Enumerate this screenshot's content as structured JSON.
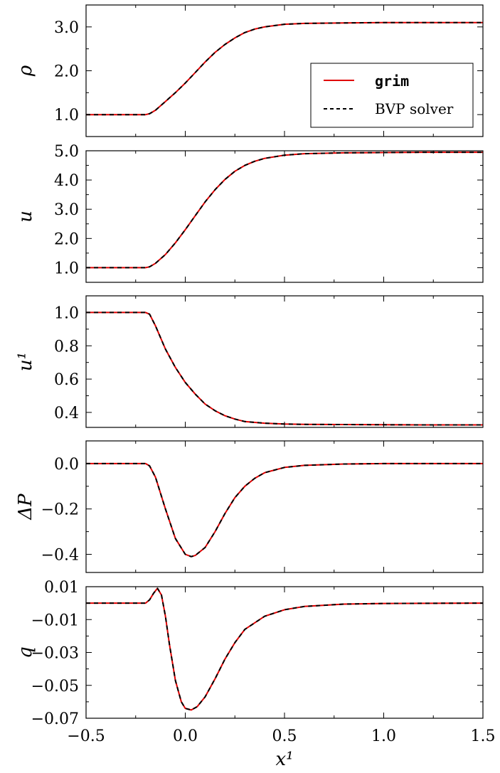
{
  "colors": {
    "grim": "#e00000",
    "bvp": "#000000"
  },
  "legend": {
    "entries": [
      {
        "label": "grim",
        "style": "solid",
        "color": "#e00000"
      },
      {
        "label": "BVP solver",
        "style": "dashed",
        "color": "#000000"
      }
    ],
    "placement": "lower-right of first panel"
  },
  "chart_data": [
    {
      "type": "line",
      "ylabel": "ρ",
      "ylim": [
        0.5,
        3.5
      ],
      "yticks": [
        1.0,
        2.0,
        3.0
      ],
      "ytick_labels": [
        "1.0",
        "2.0",
        "3.0"
      ],
      "xlim": [
        -0.5,
        1.5
      ],
      "x": [
        -0.5,
        -0.3,
        -0.2,
        -0.18,
        -0.15,
        -0.1,
        -0.05,
        0.0,
        0.05,
        0.1,
        0.15,
        0.2,
        0.25,
        0.3,
        0.35,
        0.4,
        0.5,
        0.6,
        0.8,
        1.0,
        1.2,
        1.5
      ],
      "series": [
        {
          "name": "grim",
          "values": [
            1.0,
            1.0,
            1.0,
            1.02,
            1.1,
            1.3,
            1.5,
            1.72,
            1.96,
            2.2,
            2.42,
            2.6,
            2.75,
            2.87,
            2.95,
            3.0,
            3.06,
            3.08,
            3.09,
            3.1,
            3.1,
            3.1
          ]
        },
        {
          "name": "BVP solver",
          "values": [
            1.0,
            1.0,
            1.0,
            1.02,
            1.1,
            1.3,
            1.5,
            1.72,
            1.96,
            2.2,
            2.42,
            2.6,
            2.75,
            2.87,
            2.95,
            3.0,
            3.06,
            3.08,
            3.09,
            3.1,
            3.1,
            3.1
          ]
        }
      ]
    },
    {
      "type": "line",
      "ylabel": "u",
      "ylim": [
        0.5,
        5.0
      ],
      "yticks": [
        1.0,
        2.0,
        3.0,
        4.0,
        5.0
      ],
      "ytick_labels": [
        "1.0",
        "2.0",
        "3.0",
        "4.0",
        "5.0"
      ],
      "xlim": [
        -0.5,
        1.5
      ],
      "x": [
        -0.5,
        -0.3,
        -0.2,
        -0.18,
        -0.15,
        -0.1,
        -0.05,
        0.0,
        0.05,
        0.1,
        0.15,
        0.2,
        0.25,
        0.3,
        0.35,
        0.4,
        0.5,
        0.6,
        0.8,
        1.0,
        1.2,
        1.5
      ],
      "series": [
        {
          "name": "grim",
          "values": [
            1.0,
            1.0,
            1.0,
            1.03,
            1.15,
            1.45,
            1.85,
            2.3,
            2.78,
            3.25,
            3.67,
            4.02,
            4.3,
            4.5,
            4.64,
            4.74,
            4.85,
            4.9,
            4.93,
            4.94,
            4.95,
            4.95
          ]
        },
        {
          "name": "BVP solver",
          "values": [
            1.0,
            1.0,
            1.0,
            1.03,
            1.15,
            1.45,
            1.85,
            2.3,
            2.78,
            3.25,
            3.67,
            4.02,
            4.3,
            4.5,
            4.64,
            4.74,
            4.85,
            4.9,
            4.93,
            4.94,
            4.95,
            4.95
          ]
        }
      ]
    },
    {
      "type": "line",
      "ylabel": "u¹",
      "ylim": [
        0.31,
        1.1
      ],
      "yticks": [
        0.4,
        0.6,
        0.8,
        1.0
      ],
      "ytick_labels": [
        "0.4",
        "0.6",
        "0.8",
        "1.0"
      ],
      "xlim": [
        -0.5,
        1.5
      ],
      "x": [
        -0.5,
        -0.3,
        -0.2,
        -0.18,
        -0.15,
        -0.1,
        -0.05,
        0.0,
        0.05,
        0.1,
        0.15,
        0.2,
        0.25,
        0.3,
        0.35,
        0.4,
        0.5,
        0.6,
        0.8,
        1.0,
        1.2,
        1.5
      ],
      "series": [
        {
          "name": "grim",
          "values": [
            1.0,
            1.0,
            1.0,
            0.99,
            0.92,
            0.78,
            0.67,
            0.58,
            0.51,
            0.45,
            0.41,
            0.38,
            0.36,
            0.345,
            0.34,
            0.335,
            0.33,
            0.328,
            0.327,
            0.326,
            0.325,
            0.325
          ]
        },
        {
          "name": "BVP solver",
          "values": [
            1.0,
            1.0,
            1.0,
            0.99,
            0.92,
            0.78,
            0.67,
            0.58,
            0.51,
            0.45,
            0.41,
            0.38,
            0.36,
            0.345,
            0.34,
            0.335,
            0.33,
            0.328,
            0.327,
            0.326,
            0.325,
            0.325
          ]
        }
      ]
    },
    {
      "type": "line",
      "ylabel": "ΔP",
      "ylim": [
        -0.48,
        0.1
      ],
      "yticks": [
        -0.4,
        -0.2,
        0.0
      ],
      "ytick_labels": [
        "−0.4",
        "−0.2",
        "0.0"
      ],
      "xlim": [
        -0.5,
        1.5
      ],
      "x": [
        -0.5,
        -0.3,
        -0.2,
        -0.18,
        -0.15,
        -0.1,
        -0.05,
        0.0,
        0.03,
        0.05,
        0.1,
        0.15,
        0.2,
        0.25,
        0.3,
        0.35,
        0.4,
        0.5,
        0.6,
        0.8,
        1.0,
        1.2,
        1.5
      ],
      "series": [
        {
          "name": "grim",
          "values": [
            0.0,
            0.0,
            0.0,
            -0.01,
            -0.06,
            -0.2,
            -0.33,
            -0.4,
            -0.41,
            -0.405,
            -0.37,
            -0.3,
            -0.22,
            -0.15,
            -0.1,
            -0.065,
            -0.04,
            -0.017,
            -0.008,
            -0.002,
            0.0,
            0.0,
            0.0
          ]
        },
        {
          "name": "BVP solver",
          "values": [
            0.0,
            0.0,
            0.0,
            -0.01,
            -0.06,
            -0.2,
            -0.33,
            -0.4,
            -0.41,
            -0.405,
            -0.37,
            -0.3,
            -0.22,
            -0.15,
            -0.1,
            -0.065,
            -0.04,
            -0.017,
            -0.008,
            -0.002,
            0.0,
            0.0,
            0.0
          ]
        }
      ]
    },
    {
      "type": "line",
      "ylabel": "q",
      "xlabel": "x¹",
      "ylim": [
        -0.07,
        0.01
      ],
      "yticks": [
        -0.07,
        -0.05,
        -0.03,
        -0.01,
        0.01
      ],
      "ytick_labels": [
        "−0.07",
        "−0.05",
        "−0.03",
        "−0.01",
        "0.01"
      ],
      "xlim": [
        -0.5,
        1.5
      ],
      "xticks": [
        -0.5,
        0.0,
        0.5,
        1.0,
        1.5
      ],
      "xtick_labels": [
        "−0.5",
        "0.0",
        "0.5",
        "1.0",
        "1.5"
      ],
      "x": [
        -0.5,
        -0.3,
        -0.2,
        -0.18,
        -0.16,
        -0.14,
        -0.12,
        -0.1,
        -0.08,
        -0.05,
        -0.02,
        0.0,
        0.03,
        0.06,
        0.1,
        0.15,
        0.2,
        0.25,
        0.3,
        0.4,
        0.5,
        0.6,
        0.8,
        1.0,
        1.5
      ],
      "series": [
        {
          "name": "grim",
          "values": [
            0.0,
            0.0,
            0.0,
            0.002,
            0.006,
            0.009,
            0.005,
            -0.008,
            -0.025,
            -0.047,
            -0.06,
            -0.064,
            -0.065,
            -0.063,
            -0.057,
            -0.046,
            -0.034,
            -0.024,
            -0.016,
            -0.008,
            -0.004,
            -0.002,
            -0.0006,
            -0.0002,
            0.0
          ]
        },
        {
          "name": "BVP solver",
          "values": [
            0.0,
            0.0,
            0.0,
            0.002,
            0.006,
            0.009,
            0.005,
            -0.008,
            -0.025,
            -0.047,
            -0.06,
            -0.064,
            -0.065,
            -0.063,
            -0.057,
            -0.046,
            -0.034,
            -0.024,
            -0.016,
            -0.008,
            -0.004,
            -0.002,
            -0.0006,
            -0.0002,
            0.0
          ]
        }
      ]
    }
  ]
}
